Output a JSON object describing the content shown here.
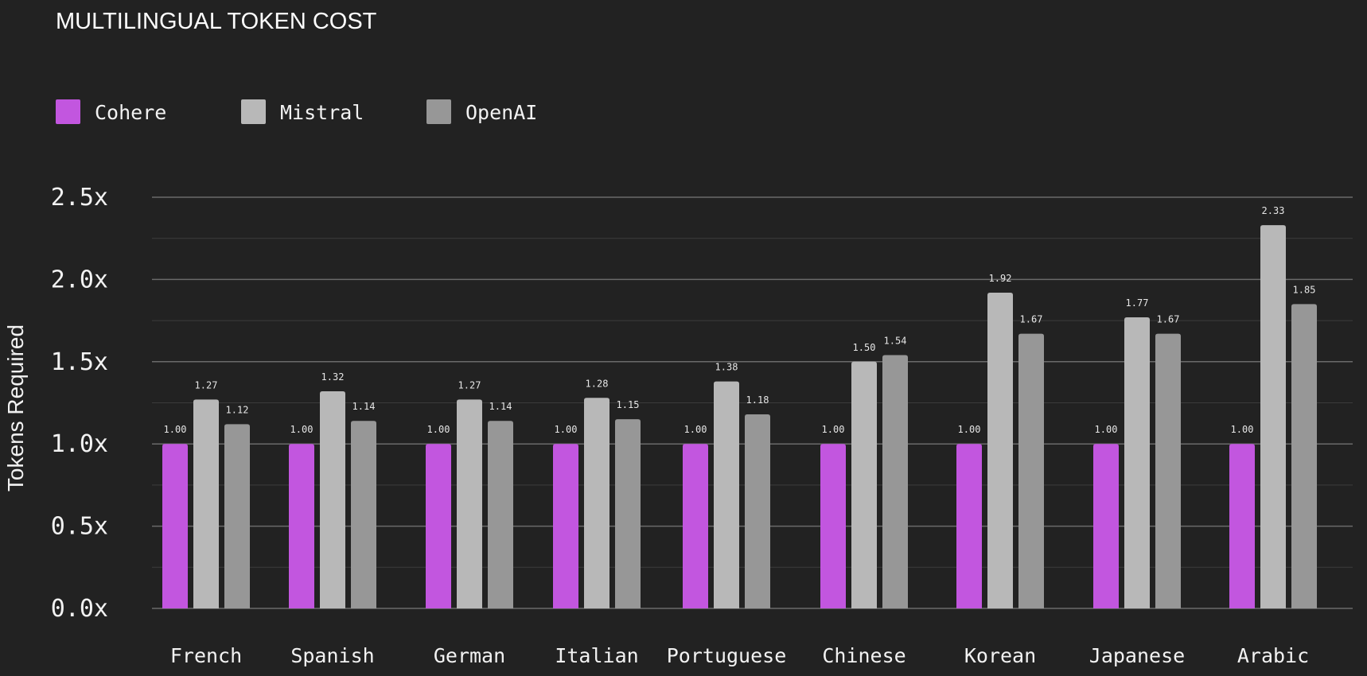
{
  "colors": {
    "background": "#222222",
    "grid_major": "#6a6a6a",
    "grid_minor": "#3c3c3c",
    "text": "#f2f2f2",
    "value_label": "#e6e6e6"
  },
  "chart_data": {
    "type": "bar",
    "title": "MULTILINGUAL TOKEN COST",
    "ylabel": "Tokens Required",
    "xlabel": "",
    "ylim": [
      0,
      2.5
    ],
    "yticks": [
      {
        "value": 0,
        "label": "0.0x"
      },
      {
        "value": 0.5,
        "label": "0.5x"
      },
      {
        "value": 1.0,
        "label": "1.0x"
      },
      {
        "value": 1.5,
        "label": "1.5x"
      },
      {
        "value": 2.0,
        "label": "2.0x"
      },
      {
        "value": 2.5,
        "label": "2.5x"
      }
    ],
    "grid": true,
    "legend_position": "top-left",
    "categories": [
      "French",
      "Spanish",
      "German",
      "Italian",
      "Portuguese",
      "Chinese",
      "Korean",
      "Japanese",
      "Arabic"
    ],
    "series": [
      {
        "name": "Cohere",
        "color": "#c256df",
        "values": [
          1.0,
          1.0,
          1.0,
          1.0,
          1.0,
          1.0,
          1.0,
          1.0,
          1.0
        ],
        "labels": [
          "1.00",
          "1.00",
          "1.00",
          "1.00",
          "1.00",
          "1.00",
          "1.00",
          "1.00",
          "1.00"
        ]
      },
      {
        "name": "Mistral",
        "color": "#b8b8b8",
        "values": [
          1.27,
          1.32,
          1.27,
          1.28,
          1.38,
          1.5,
          1.92,
          1.77,
          2.33
        ],
        "labels": [
          "1.27",
          "1.32",
          "1.27",
          "1.28",
          "1.38",
          "1.50",
          "1.92",
          "1.77",
          "2.33"
        ]
      },
      {
        "name": "OpenAI",
        "color": "#979797",
        "values": [
          1.12,
          1.14,
          1.14,
          1.15,
          1.18,
          1.54,
          1.67,
          1.67,
          1.85
        ],
        "labels": [
          "1.12",
          "1.14",
          "1.14",
          "1.15",
          "1.18",
          "1.54",
          "1.67",
          "1.67",
          "1.85"
        ]
      }
    ]
  }
}
